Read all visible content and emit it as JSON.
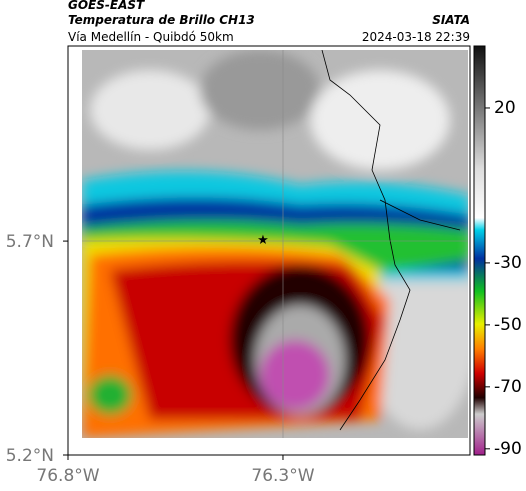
{
  "header": {
    "source": "GOES-EAST",
    "product": "Temperatura de Brillo CH13",
    "region": "Vía Medellín - Quibdó 50km",
    "agency": "SIATA",
    "datetime": "2024-03-18 22:39"
  },
  "map": {
    "lon_lim": [
      -76.8,
      -75.865
    ],
    "lat_lim": [
      5.2,
      6.156
    ],
    "lon_ticks": [
      {
        "value": -76.8,
        "label": "76.8°W"
      },
      {
        "value": -76.3,
        "label": "76.3°W"
      }
    ],
    "lat_ticks": [
      {
        "value": 5.7,
        "label": "5.7°N"
      },
      {
        "value": 5.2,
        "label": "5.2°N"
      }
    ]
  },
  "colorbar": {
    "lim": [
      -92,
      40
    ],
    "ticks": [
      20,
      -30,
      -50,
      -70,
      -90
    ]
  }
}
